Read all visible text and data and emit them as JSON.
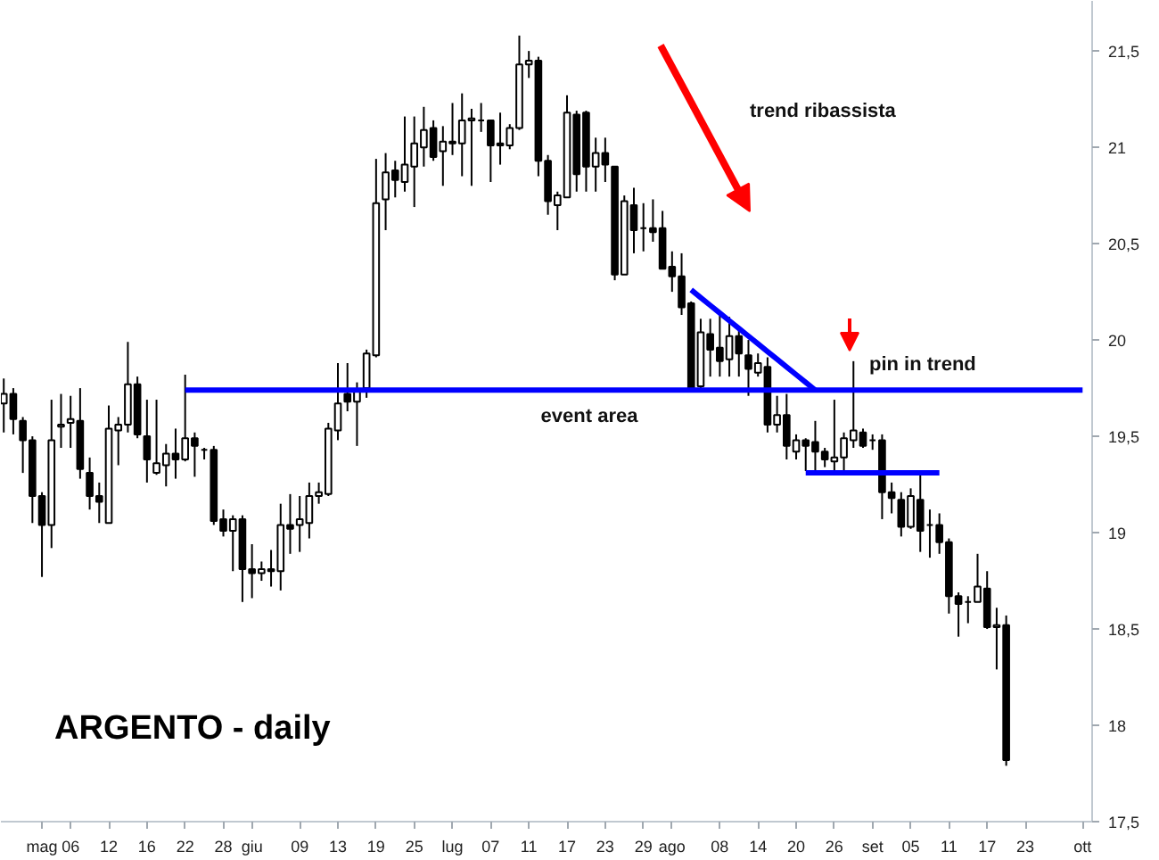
{
  "chart_data": {
    "type": "candlestick",
    "title": "ARGENTO - daily",
    "color": "#000000",
    "categories": [
      null,
      null,
      null,
      null,
      "mag",
      null,
      null,
      "06",
      null,
      null,
      null,
      "12",
      null,
      null,
      null,
      "16",
      null,
      null,
      null,
      "22",
      null,
      null,
      null,
      "28",
      null,
      null,
      "giu",
      null,
      null,
      null,
      null,
      "09",
      null,
      null,
      null,
      "13",
      null,
      null,
      null,
      "19",
      null,
      null,
      null,
      "25",
      null,
      null,
      null,
      "lug",
      null,
      null,
      null,
      "07",
      null,
      null,
      null,
      "11",
      null,
      null,
      null,
      "17",
      null,
      null,
      null,
      "23",
      null,
      null,
      null,
      "29",
      null,
      null,
      "ago",
      null,
      null,
      null,
      null,
      "08",
      null,
      null,
      null,
      "14",
      null,
      null,
      null,
      "20",
      null,
      null,
      null,
      "26",
      null,
      null,
      null,
      "set",
      null,
      null,
      null,
      "05",
      null,
      null,
      null,
      "11",
      null,
      null,
      null,
      "17",
      null,
      null,
      null,
      "23",
      null,
      null,
      null,
      null,
      null,
      "ott"
    ],
    "ohlc": [
      [
        19.67,
        19.8,
        19.52,
        19.72
      ],
      [
        19.72,
        19.75,
        19.51,
        19.59
      ],
      [
        19.58,
        19.6,
        19.31,
        19.48
      ],
      [
        19.48,
        19.5,
        19.05,
        19.19
      ],
      [
        19.19,
        19.21,
        18.77,
        19.04
      ],
      [
        19.04,
        19.69,
        18.92,
        19.48
      ],
      [
        19.55,
        19.72,
        19.44,
        19.56
      ],
      [
        19.57,
        19.71,
        19.44,
        19.59
      ],
      [
        19.58,
        19.75,
        19.28,
        19.33
      ],
      [
        19.31,
        19.39,
        19.12,
        19.19
      ],
      [
        19.19,
        19.26,
        19.05,
        19.16
      ],
      [
        19.05,
        19.66,
        19.05,
        19.54
      ],
      [
        19.53,
        19.6,
        19.35,
        19.56
      ],
      [
        19.56,
        19.99,
        19.52,
        19.77
      ],
      [
        19.77,
        19.81,
        19.49,
        19.51
      ],
      [
        19.5,
        19.69,
        19.26,
        19.38
      ],
      [
        19.31,
        19.69,
        19.3,
        19.36
      ],
      [
        19.35,
        19.46,
        19.24,
        19.41
      ],
      [
        19.41,
        19.54,
        19.28,
        19.38
      ],
      [
        19.38,
        19.82,
        19.37,
        19.49
      ],
      [
        19.49,
        19.52,
        19.29,
        19.45
      ],
      [
        19.43,
        19.44,
        19.38,
        19.43
      ],
      [
        19.43,
        19.45,
        19.04,
        19.06
      ],
      [
        19.07,
        19.12,
        18.98,
        19.01
      ],
      [
        19.01,
        19.09,
        18.8,
        19.07
      ],
      [
        19.07,
        19.09,
        18.64,
        18.81
      ],
      [
        18.81,
        18.94,
        18.66,
        18.79
      ],
      [
        18.79,
        18.85,
        18.75,
        18.81
      ],
      [
        18.81,
        18.91,
        18.72,
        18.8
      ],
      [
        18.8,
        19.15,
        18.7,
        19.04
      ],
      [
        19.04,
        19.2,
        18.89,
        19.02
      ],
      [
        19.04,
        19.19,
        18.9,
        19.07
      ],
      [
        19.05,
        19.26,
        18.97,
        19.19
      ],
      [
        19.19,
        19.26,
        19.15,
        19.21
      ],
      [
        19.2,
        19.57,
        19.19,
        19.54
      ],
      [
        19.53,
        19.88,
        19.48,
        19.67
      ],
      [
        19.72,
        19.88,
        19.63,
        19.68
      ],
      [
        19.68,
        19.78,
        19.45,
        19.74
      ],
      [
        19.75,
        19.95,
        19.7,
        19.93
      ],
      [
        19.92,
        20.94,
        19.91,
        20.71
      ],
      [
        20.73,
        20.97,
        20.57,
        20.87
      ],
      [
        20.88,
        20.93,
        20.74,
        20.83
      ],
      [
        20.82,
        21.16,
        20.77,
        20.91
      ],
      [
        20.9,
        21.16,
        20.69,
        21.02
      ],
      [
        21.0,
        21.21,
        20.9,
        21.09
      ],
      [
        21.1,
        21.14,
        20.93,
        20.95
      ],
      [
        20.98,
        21.11,
        20.8,
        21.03
      ],
      [
        21.03,
        21.23,
        20.96,
        21.02
      ],
      [
        21.02,
        21.28,
        20.85,
        21.14
      ],
      [
        21.14,
        21.2,
        20.8,
        21.15
      ],
      [
        21.14,
        21.23,
        21.08,
        21.14
      ],
      [
        21.14,
        21.14,
        20.82,
        21.01
      ],
      [
        21.02,
        21.18,
        20.91,
        21.01
      ],
      [
        21.01,
        21.12,
        20.99,
        21.1
      ],
      [
        21.1,
        21.58,
        21.09,
        21.43
      ],
      [
        21.43,
        21.5,
        21.36,
        21.45
      ],
      [
        21.45,
        21.47,
        20.85,
        20.93
      ],
      [
        20.93,
        20.96,
        20.65,
        20.72
      ],
      [
        20.7,
        20.77,
        20.57,
        20.75
      ],
      [
        20.74,
        21.27,
        20.74,
        21.18
      ],
      [
        21.17,
        21.19,
        20.77,
        20.86
      ],
      [
        21.18,
        21.19,
        20.77,
        20.9
      ],
      [
        20.9,
        21.05,
        20.77,
        20.97
      ],
      [
        20.97,
        21.05,
        20.82,
        20.91
      ],
      [
        20.9,
        20.9,
        20.31,
        20.34
      ],
      [
        20.34,
        20.75,
        20.34,
        20.72
      ],
      [
        20.7,
        20.79,
        20.45,
        20.57
      ],
      [
        20.58,
        20.71,
        20.46,
        20.58
      ],
      [
        20.58,
        20.73,
        20.51,
        20.56
      ],
      [
        20.58,
        20.67,
        20.37,
        20.37
      ],
      [
        20.38,
        20.46,
        20.25,
        20.33
      ],
      [
        20.33,
        20.45,
        20.13,
        20.17
      ],
      [
        20.19,
        20.2,
        19.74,
        19.75
      ],
      [
        19.76,
        20.11,
        19.75,
        20.04
      ],
      [
        20.03,
        20.11,
        19.81,
        19.95
      ],
      [
        19.96,
        20.14,
        19.81,
        19.89
      ],
      [
        19.9,
        20.12,
        19.81,
        20.02
      ],
      [
        20.02,
        20.06,
        19.81,
        19.93
      ],
      [
        19.92,
        20.0,
        19.71,
        19.85
      ],
      [
        19.83,
        19.93,
        19.81,
        19.88
      ],
      [
        19.86,
        19.91,
        19.52,
        19.56
      ],
      [
        19.56,
        19.71,
        19.52,
        19.61
      ],
      [
        19.61,
        19.72,
        19.38,
        19.45
      ],
      [
        19.42,
        19.51,
        19.38,
        19.48
      ],
      [
        19.48,
        19.49,
        19.32,
        19.45
      ],
      [
        19.47,
        19.58,
        19.32,
        19.42
      ],
      [
        19.42,
        19.44,
        19.34,
        19.38
      ],
      [
        19.37,
        19.69,
        19.32,
        19.39
      ],
      [
        19.39,
        19.52,
        19.32,
        19.49
      ],
      [
        19.48,
        19.89,
        19.44,
        19.53
      ],
      [
        19.52,
        19.54,
        19.44,
        19.45
      ],
      [
        19.48,
        19.51,
        19.43,
        19.48
      ],
      [
        19.48,
        19.51,
        19.07,
        19.21
      ],
      [
        19.21,
        19.26,
        19.1,
        19.18
      ],
      [
        19.17,
        19.21,
        18.98,
        19.03
      ],
      [
        19.03,
        19.23,
        19.02,
        19.19
      ],
      [
        19.17,
        19.32,
        18.9,
        19.01
      ],
      [
        19.04,
        19.12,
        18.87,
        19.04
      ],
      [
        19.04,
        19.1,
        18.89,
        18.95
      ],
      [
        18.95,
        18.97,
        18.58,
        18.67
      ],
      [
        18.67,
        18.69,
        18.46,
        18.63
      ],
      [
        18.64,
        18.67,
        18.53,
        18.64
      ],
      [
        18.64,
        18.89,
        18.64,
        18.72
      ],
      [
        18.71,
        18.8,
        18.5,
        18.51
      ],
      [
        18.51,
        18.61,
        18.29,
        18.52
      ],
      [
        18.52,
        18.57,
        17.79,
        17.82
      ],
      null,
      null,
      null,
      null,
      null,
      null,
      null,
      null
    ],
    "series": [
      {
        "type": "line",
        "color": "#0000ff",
        "values": [
          null,
          null,
          null,
          null,
          null,
          null,
          null,
          null,
          null,
          null,
          null,
          null,
          null,
          null,
          null,
          null,
          null,
          null,
          null,
          19.74,
          19.74,
          19.74,
          19.74,
          19.74,
          19.74,
          19.74,
          19.74,
          19.74,
          19.74,
          19.74,
          19.74,
          19.74,
          19.74,
          19.74,
          19.74,
          19.74,
          19.74,
          19.74,
          19.74,
          19.74,
          19.74,
          19.74,
          19.74,
          19.74,
          19.74,
          19.74,
          19.74,
          19.74,
          19.74,
          19.74,
          19.74,
          19.74,
          19.74,
          19.74,
          19.74,
          19.74,
          19.74,
          19.74,
          19.74,
          19.74,
          19.74,
          19.74,
          19.74,
          19.74,
          19.74,
          19.74,
          19.74,
          19.74,
          19.74,
          19.74,
          19.74,
          19.74,
          19.74,
          19.74,
          19.74,
          19.74,
          19.74,
          19.74,
          19.74,
          19.74,
          19.74,
          19.74,
          19.74,
          19.74,
          19.74,
          19.74,
          19.74,
          19.74,
          19.74,
          19.74,
          19.74,
          19.74,
          19.74,
          19.74,
          19.74,
          19.74,
          19.74,
          19.74,
          19.74,
          19.74,
          19.74,
          19.74,
          19.74,
          19.74,
          19.74,
          19.74,
          19.74,
          19.74,
          19.74,
          19.74,
          19.74,
          19.74,
          19.74,
          19.74
        ]
      },
      {
        "type": "line",
        "color": "#0000ff",
        "values": [
          null,
          null,
          null,
          null,
          null,
          null,
          null,
          null,
          null,
          null,
          null,
          null,
          null,
          null,
          null,
          null,
          null,
          null,
          null,
          null,
          null,
          null,
          null,
          null,
          null,
          null,
          null,
          null,
          null,
          null,
          null,
          null,
          null,
          null,
          null,
          null,
          null,
          null,
          null,
          null,
          null,
          null,
          null,
          null,
          null,
          null,
          null,
          null,
          null,
          null,
          null,
          null,
          null,
          null,
          null,
          null,
          null,
          null,
          null,
          null,
          null,
          null,
          null,
          null,
          null,
          null,
          null,
          null,
          null,
          null,
          null,
          null,
          20.26,
          20.22,
          20.18,
          20.14,
          20.1,
          20.06,
          20.02,
          19.98,
          19.94,
          19.9,
          19.86,
          19.82,
          19.78,
          19.74,
          null,
          null,
          null,
          null,
          null,
          null,
          null,
          null,
          null,
          null,
          null,
          null,
          null,
          null,
          null,
          null,
          null,
          null,
          null,
          null,
          null,
          null,
          null,
          null,
          null,
          null,
          null,
          null
        ]
      },
      {
        "type": "line",
        "color": "#0000ff",
        "values": [
          null,
          null,
          null,
          null,
          null,
          null,
          null,
          null,
          null,
          null,
          null,
          null,
          null,
          null,
          null,
          null,
          null,
          null,
          null,
          null,
          null,
          null,
          null,
          null,
          null,
          null,
          null,
          null,
          null,
          null,
          null,
          null,
          null,
          null,
          null,
          null,
          null,
          null,
          null,
          null,
          null,
          null,
          null,
          null,
          null,
          null,
          null,
          null,
          null,
          null,
          null,
          null,
          null,
          null,
          null,
          null,
          null,
          null,
          null,
          null,
          null,
          null,
          null,
          null,
          null,
          null,
          null,
          null,
          null,
          null,
          null,
          null,
          null,
          null,
          null,
          null,
          null,
          null,
          null,
          null,
          null,
          null,
          null,
          null,
          19.31,
          19.31,
          19.31,
          19.31,
          19.31,
          19.31,
          19.31,
          19.31,
          19.31,
          19.31,
          19.31,
          19.31,
          19.31,
          19.31,
          19.31,
          null,
          null,
          null,
          null,
          null,
          null,
          null,
          null,
          null,
          null,
          null,
          null,
          null,
          null,
          null
        ]
      }
    ],
    "annotations": [
      "trend ribassista",
      "event area",
      "pin in trend"
    ],
    "ylim": [
      17.5,
      21.76
    ],
    "yticks": [
      {
        "value": 17.5,
        "label": "17,5"
      },
      18,
      {
        "value": 18.5,
        "label": "18,5"
      },
      19,
      {
        "value": 19.5,
        "label": "19,5"
      },
      20,
      {
        "value": 20.5,
        "label": "20,5"
      },
      21,
      {
        "value": 21.5,
        "label": "21,5"
      }
    ]
  }
}
